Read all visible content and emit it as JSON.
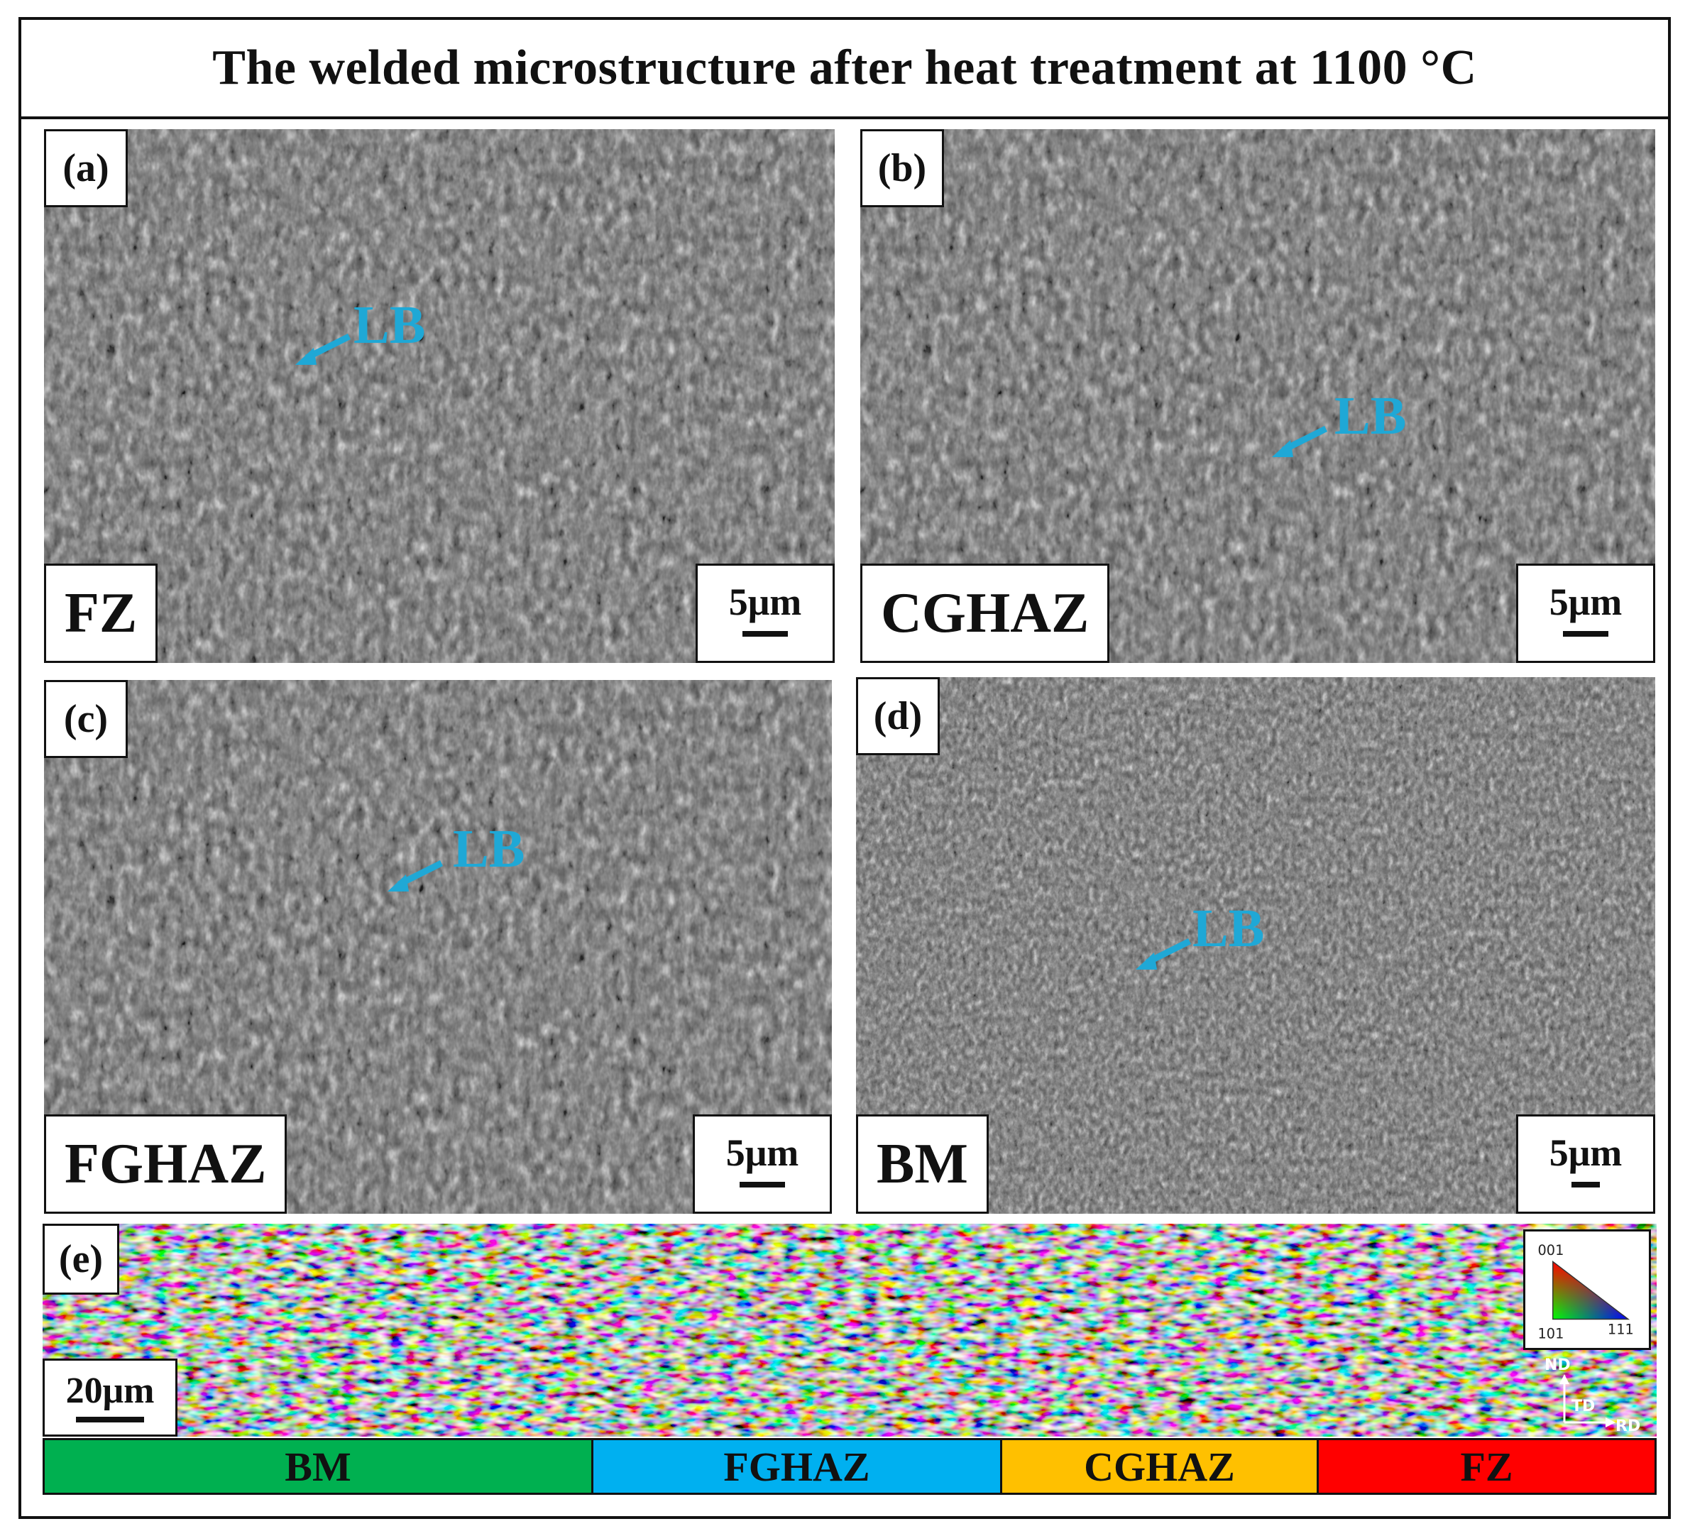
{
  "title": "The welded microstructure after heat treatment at 1100 °C",
  "panels": [
    {
      "tag": "(a)",
      "zone": "FZ",
      "scale": "5μm",
      "annotation": "LB"
    },
    {
      "tag": "(b)",
      "zone": "CGHAZ",
      "scale": "5μm",
      "annotation": "LB"
    },
    {
      "tag": "(c)",
      "zone": "FGHAZ",
      "scale": "5μm",
      "annotation": "LB"
    },
    {
      "tag": "(d)",
      "zone": "BM",
      "scale": "5μm",
      "annotation": "LB"
    }
  ],
  "ebsd": {
    "tag": "(e)",
    "scale": "20μm",
    "ipf_key": {
      "top": "001",
      "left": "101",
      "right": "111"
    },
    "axes": {
      "vertical": "ND",
      "depth": "TD",
      "horizontal": "RD"
    }
  },
  "zone_bar": [
    {
      "label": "BM",
      "color": "#00b050"
    },
    {
      "label": "FGHAZ",
      "color": "#00b0f0"
    },
    {
      "label": "CGHAZ",
      "color": "#ffc000"
    },
    {
      "label": "FZ",
      "color": "#ff0000"
    }
  ],
  "colors": {
    "annotation": "#1fa8d6",
    "frame": "#111111"
  }
}
